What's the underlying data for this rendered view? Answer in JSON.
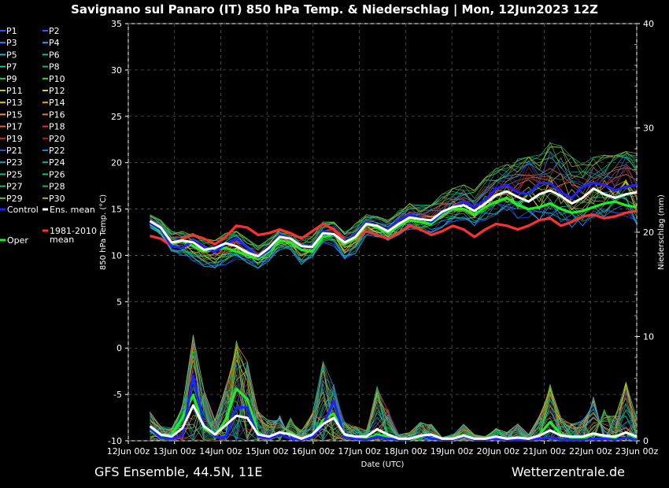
{
  "chart_data": {
    "type": "line",
    "title": "Savignano sul Panaro  (IT)  850 hPa Temp. & Niederschlag | Mon, 12Jun2023 12Z",
    "xlabel": "Date (UTC)",
    "ylabel": "850 hPa Temp. (°C)",
    "y2label": "Niederschlag (mm)",
    "footer_left": "GFS Ensemble, 44.5N, 11E",
    "footer_right": "Wetterzentrale.de",
    "ylim": [
      -10,
      35
    ],
    "y2lim": [
      0,
      40
    ],
    "yticks": [
      "35",
      "30",
      "25",
      "20",
      "15",
      "10",
      "5",
      "0",
      "-5",
      "-10"
    ],
    "y2ticks": [
      "40",
      "30",
      "20",
      "10",
      "0"
    ],
    "x_categories": [
      "12Jun 00z",
      "13Jun 00z",
      "14Jun 00z",
      "15Jun 00z",
      "16Jun 00z",
      "17Jun 00z",
      "18Jun 00z",
      "19Jun 00z",
      "20Jun 00z",
      "21Jun 00z",
      "22Jun 00z",
      "23Jun 00z"
    ],
    "grid": true,
    "legend_position": "left",
    "legend": [
      {
        "label": "P1",
        "color": "#3050ff"
      },
      {
        "label": "P2",
        "color": "#2060ff"
      },
      {
        "label": "P3",
        "color": "#3c7cff"
      },
      {
        "label": "P4",
        "color": "#2aa0e0"
      },
      {
        "label": "P5",
        "color": "#20b4c8"
      },
      {
        "label": "P6",
        "color": "#18c0a0"
      },
      {
        "label": "P7",
        "color": "#18c890"
      },
      {
        "label": "P8",
        "color": "#18b860"
      },
      {
        "label": "P9",
        "color": "#20d050"
      },
      {
        "label": "P10",
        "color": "#30e030"
      },
      {
        "label": "P11",
        "color": "#a0d040"
      },
      {
        "label": "P12",
        "color": "#d8d030"
      },
      {
        "label": "P13",
        "color": "#e8c020"
      },
      {
        "label": "P14",
        "color": "#f0a020"
      },
      {
        "label": "P15",
        "color": "#f09040"
      },
      {
        "label": "P16",
        "color": "#e07850"
      },
      {
        "label": "P17",
        "color": "#e06040"
      },
      {
        "label": "P18",
        "color": "#d04030"
      },
      {
        "label": "P19",
        "color": "#c83030"
      },
      {
        "label": "P20",
        "color": "#b02020"
      },
      {
        "label": "P21",
        "color": "#2050e0"
      },
      {
        "label": "P22",
        "color": "#2080d0"
      },
      {
        "label": "P23",
        "color": "#2098c0"
      },
      {
        "label": "P24",
        "color": "#20a8b0"
      },
      {
        "label": "P25",
        "color": "#18b890"
      },
      {
        "label": "P26",
        "color": "#18c080"
      },
      {
        "label": "P27",
        "color": "#20c060"
      },
      {
        "label": "P28",
        "color": "#28b040"
      },
      {
        "label": "P29",
        "color": "#60c030"
      },
      {
        "label": "P30",
        "color": "#c8b020"
      },
      {
        "label": "Control",
        "color": "#2020ff"
      },
      {
        "label": "Ens. mean",
        "color": "#ffffff"
      },
      {
        "label": "Oper",
        "color": "#22ee22"
      },
      {
        "label": "1981-2010 mean",
        "color": "#ff3030"
      }
    ],
    "x_index": [
      2,
      3,
      4,
      5,
      6,
      7,
      8,
      9,
      10,
      11,
      12,
      13,
      14,
      15,
      16,
      17,
      18,
      19,
      20,
      21,
      22,
      23,
      24,
      25,
      26,
      27,
      28,
      29,
      30,
      31,
      32,
      33,
      34,
      35,
      36,
      37,
      38,
      39,
      40,
      41,
      42,
      43,
      44,
      45,
      46,
      47
    ],
    "series_temp": [
      {
        "name": "Control",
        "color": "#2020ff",
        "values": [
          13.5,
          12.8,
          11.0,
          10.8,
          11.6,
          10.8,
          10.4,
          11.2,
          11.8,
          10.8,
          9.8,
          10.6,
          12.2,
          11.8,
          11.0,
          10.8,
          12.6,
          12.2,
          11.5,
          12.2,
          13.6,
          13.2,
          12.8,
          13.8,
          14.4,
          14.0,
          13.6,
          14.6,
          15.2,
          15.8,
          15.2,
          16.0,
          17.2,
          17.6,
          16.8,
          16.6,
          17.8,
          17.8,
          16.8,
          16.2,
          17.4,
          17.8,
          17.6,
          17.0,
          17.4,
          17.6
        ]
      },
      {
        "name": "Ens. mean",
        "color": "#ffffff",
        "values": [
          13.7,
          13.0,
          11.4,
          11.6,
          11.4,
          10.6,
          10.8,
          11.3,
          11.0,
          10.3,
          9.9,
          10.8,
          12.0,
          11.8,
          11.0,
          10.9,
          12.4,
          12.3,
          11.4,
          12.0,
          13.4,
          13.2,
          12.6,
          13.4,
          14.1,
          13.9,
          13.8,
          14.7,
          15.2,
          15.4,
          14.8,
          15.6,
          16.5,
          16.9,
          16.3,
          15.8,
          16.6,
          17.0,
          16.4,
          15.6,
          16.2,
          17.2,
          16.6,
          16.2,
          16.6,
          16.8
        ]
      },
      {
        "name": "Oper",
        "color": "#22ee22",
        "values": [
          13.4,
          12.6,
          11.2,
          11.6,
          11.0,
          10.4,
          10.6,
          10.8,
          10.4,
          10.0,
          9.6,
          10.4,
          11.6,
          11.4,
          10.6,
          10.4,
          12.0,
          12.2,
          11.2,
          11.8,
          13.4,
          13.0,
          12.4,
          13.2,
          13.8,
          13.6,
          13.4,
          14.4,
          15.0,
          15.0,
          14.4,
          15.2,
          15.8,
          16.2,
          15.4,
          15.0,
          15.2,
          15.6,
          15.0,
          14.6,
          14.8,
          15.2,
          15.6,
          15.8,
          15.4,
          15.2
        ]
      },
      {
        "name": "1981-2010 mean",
        "color": "#ff3030",
        "values": [
          12.1,
          11.8,
          11.0,
          11.8,
          12.2,
          11.8,
          11.2,
          12.0,
          13.2,
          13.0,
          12.2,
          12.4,
          12.8,
          12.4,
          11.8,
          12.6,
          13.4,
          12.8,
          11.6,
          11.8,
          12.6,
          12.2,
          11.8,
          12.4,
          13.2,
          12.8,
          12.2,
          12.6,
          13.2,
          12.8,
          12.0,
          12.8,
          13.4,
          13.2,
          12.8,
          13.2,
          13.8,
          14.0,
          13.2,
          13.6,
          14.2,
          14.4,
          14.0,
          14.2,
          14.6,
          14.8
        ]
      }
    ],
    "series_precip": [
      {
        "name": "Control",
        "color": "#2020ff",
        "values": [
          1.2,
          0.3,
          0.2,
          0.5,
          6.2,
          1.5,
          0.4,
          0.3,
          3.2,
          3.2,
          0.4,
          0.2,
          0.6,
          0.2,
          0.1,
          0.3,
          1.5,
          3.8,
          0.3,
          0.2,
          0.1,
          0.4,
          0.2,
          0.1,
          0.1,
          0.6,
          0.2,
          0.1,
          0.1,
          0.4,
          0.1,
          0.1,
          0.2,
          0.1,
          0.1,
          0.1,
          0.2,
          0.3,
          0.1,
          0.1,
          0.1,
          0.2,
          0.2,
          0.1,
          0.3,
          0.1
        ]
      },
      {
        "name": "Ens. mean",
        "color": "#ffffff",
        "values": [
          1.4,
          0.6,
          0.4,
          1.2,
          3.4,
          1.4,
          0.6,
          1.5,
          2.4,
          2.2,
          0.6,
          0.4,
          0.8,
          0.6,
          0.2,
          0.6,
          1.6,
          2.2,
          0.6,
          0.4,
          0.4,
          1.1,
          0.6,
          0.2,
          0.2,
          0.5,
          0.6,
          0.2,
          0.2,
          0.5,
          0.2,
          0.2,
          0.4,
          0.2,
          0.3,
          0.2,
          0.5,
          1.0,
          0.5,
          0.4,
          0.4,
          0.7,
          0.5,
          0.4,
          0.8,
          0.4
        ]
      },
      {
        "name": "Oper",
        "color": "#22ee22",
        "values": [
          1.0,
          0.4,
          0.6,
          2.2,
          4.4,
          1.2,
          0.4,
          2.0,
          5.0,
          4.0,
          0.8,
          0.2,
          0.6,
          0.8,
          0.1,
          0.4,
          2.0,
          2.6,
          0.4,
          0.2,
          0.2,
          0.6,
          0.4,
          0.1,
          0.1,
          0.4,
          0.6,
          0.1,
          0.1,
          0.6,
          0.1,
          0.1,
          0.2,
          0.1,
          0.2,
          0.1,
          0.6,
          1.8,
          0.6,
          0.3,
          0.2,
          0.6,
          0.4,
          0.3,
          0.8,
          0.2
        ]
      }
    ],
    "members_temp_band": {
      "low": [
        13.0,
        12.2,
        10.4,
        10.0,
        9.4,
        8.8,
        8.6,
        9.0,
        9.6,
        9.2,
        8.6,
        9.4,
        10.6,
        10.6,
        9.0,
        9.8,
        11.4,
        11.0,
        9.6,
        10.2,
        12.2,
        12.0,
        11.6,
        12.2,
        12.8,
        12.6,
        12.2,
        13.0,
        13.6,
        13.8,
        13.2,
        13.8,
        14.4,
        14.8,
        14.0,
        13.6,
        13.8,
        14.2,
        13.6,
        13.0,
        13.2,
        14.0,
        14.2,
        14.6,
        14.2,
        13.2
      ],
      "high": [
        14.4,
        13.8,
        12.6,
        12.6,
        12.4,
        11.8,
        11.6,
        12.4,
        12.6,
        11.8,
        11.0,
        11.8,
        12.8,
        12.4,
        12.0,
        12.0,
        13.6,
        13.6,
        12.6,
        13.4,
        14.4,
        14.2,
        13.8,
        14.8,
        15.6,
        15.4,
        15.4,
        16.6,
        17.2,
        17.6,
        17.0,
        18.4,
        19.4,
        19.8,
        20.4,
        20.6,
        21.0,
        22.2,
        21.8,
        20.6,
        19.8,
        20.6,
        20.8,
        21.0,
        21.2,
        21.0
      ]
    },
    "members_precip_peak": [
      2.8,
      1.4,
      1.2,
      3.4,
      10.2,
      4.8,
      2.0,
      5.2,
      9.6,
      7.6,
      2.8,
      2.0,
      2.4,
      2.2,
      1.0,
      2.6,
      7.6,
      5.4,
      1.8,
      1.4,
      1.0,
      5.2,
      3.0,
      0.6,
      0.8,
      1.8,
      1.6,
      0.6,
      0.6,
      1.6,
      0.6,
      0.4,
      1.2,
      0.8,
      1.6,
      0.6,
      2.4,
      5.4,
      2.2,
      1.6,
      2.0,
      4.2,
      3.0,
      2.4,
      5.6,
      2.2
    ]
  }
}
